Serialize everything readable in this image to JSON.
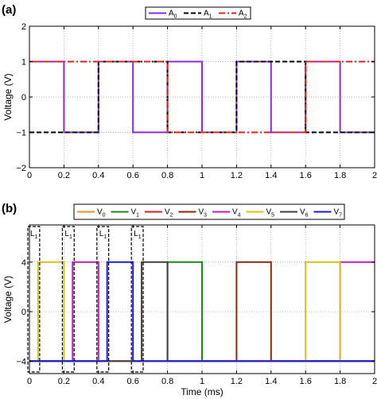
{
  "chart_data": [
    {
      "type": "line",
      "panel_label": "(a)",
      "xlabel": "",
      "ylabel": "Voltage (V)",
      "xlim": [
        0,
        2
      ],
      "ylim": [
        -2,
        2
      ],
      "x_ticks": [
        "0",
        "0.2",
        "0.4",
        "0.6",
        "0.8",
        "1",
        "1.2",
        "1.4",
        "1.6",
        "1.8",
        "2"
      ],
      "y_ticks": [
        "−2",
        "−1",
        "0",
        "1",
        "2"
      ],
      "grid": true,
      "legend_position": "top-center",
      "series": [
        {
          "name": "A",
          "sub": "0",
          "color": "#8a2be2",
          "dash": "solid",
          "points": [
            [
              0,
              1
            ],
            [
              0.2,
              1
            ],
            [
              0.2,
              -1
            ],
            [
              0.4,
              -1
            ],
            [
              0.4,
              1
            ],
            [
              0.6,
              1
            ],
            [
              0.6,
              -1
            ],
            [
              0.8,
              -1
            ],
            [
              0.8,
              1
            ],
            [
              1.0,
              1
            ],
            [
              1.0,
              -1
            ],
            [
              1.2,
              -1
            ],
            [
              1.2,
              1
            ],
            [
              1.4,
              1
            ],
            [
              1.4,
              -1
            ],
            [
              1.6,
              -1
            ],
            [
              1.6,
              1
            ],
            [
              1.8,
              1
            ],
            [
              1.8,
              -1
            ],
            [
              2.0,
              -1
            ]
          ]
        },
        {
          "name": "A",
          "sub": "1",
          "color": "#000000",
          "dash": "dashed",
          "points": [
            [
              0,
              -1
            ],
            [
              0.4,
              -1
            ],
            [
              0.4,
              1
            ],
            [
              0.8,
              1
            ],
            [
              0.8,
              -1
            ],
            [
              1.2,
              -1
            ],
            [
              1.2,
              1
            ],
            [
              1.6,
              1
            ],
            [
              1.6,
              -1
            ],
            [
              2.0,
              -1
            ]
          ]
        },
        {
          "name": "A",
          "sub": "2",
          "color": "#e0201b",
          "dash": "dashdot",
          "points": [
            [
              0,
              1
            ],
            [
              0.8,
              1
            ],
            [
              0.8,
              -1
            ],
            [
              1.6,
              -1
            ],
            [
              1.6,
              1
            ],
            [
              2.0,
              1
            ]
          ]
        }
      ]
    },
    {
      "type": "line",
      "panel_label": "(b)",
      "xlabel": "Time (ms)",
      "ylabel": "Voltage (V)",
      "xlim": [
        0,
        2
      ],
      "ylim": [
        -5,
        7
      ],
      "x_ticks": [
        "0",
        "0.2",
        "0.4",
        "0.6",
        "0.8",
        "1",
        "1.2",
        "1.4",
        "1.6",
        "1.8",
        "2"
      ],
      "y_ticks": [
        "−4",
        "0",
        "4"
      ],
      "grid": true,
      "legend_position": "top",
      "series": [
        {
          "name": "V",
          "sub": "0",
          "color": "#e69422",
          "points": [
            [
              0,
              -4
            ],
            [
              2,
              -4
            ]
          ]
        },
        {
          "name": "V",
          "sub": "1",
          "color": "#1a8a1a",
          "points": [
            [
              0,
              -4
            ],
            [
              0.8,
              -4
            ],
            [
              0.8,
              4
            ],
            [
              1.0,
              4
            ],
            [
              1.0,
              -4
            ],
            [
              2,
              -4
            ]
          ]
        },
        {
          "name": "V",
          "sub": "2",
          "color": "#e01b1b",
          "points": [
            [
              0,
              -4
            ],
            [
              2,
              -4
            ]
          ]
        },
        {
          "name": "V",
          "sub": "3",
          "color": "#8b2a0a",
          "points": [
            [
              0,
              -4
            ],
            [
              1.2,
              -4
            ],
            [
              1.2,
              4
            ],
            [
              1.4,
              4
            ],
            [
              1.4,
              -4
            ],
            [
              2,
              -4
            ]
          ]
        },
        {
          "name": "V",
          "sub": "4",
          "color": "#c21bc2",
          "points": [
            [
              0,
              -4
            ],
            [
              0.25,
              -4
            ],
            [
              0.25,
              4
            ],
            [
              0.4,
              4
            ],
            [
              0.4,
              -4
            ],
            [
              1.8,
              -4
            ],
            [
              1.8,
              4
            ],
            [
              2,
              4
            ]
          ]
        },
        {
          "name": "V",
          "sub": "5",
          "color": "#d4c21b",
          "points": [
            [
              0,
              -4
            ],
            [
              0.05,
              -4
            ],
            [
              0.05,
              4
            ],
            [
              0.2,
              4
            ],
            [
              0.2,
              -4
            ],
            [
              1.6,
              -4
            ],
            [
              1.6,
              4
            ],
            [
              1.8,
              4
            ],
            [
              1.8,
              -4
            ],
            [
              2,
              -4
            ]
          ]
        },
        {
          "name": "V",
          "sub": "6",
          "color": "#404040",
          "points": [
            [
              0,
              -4
            ],
            [
              0.65,
              -4
            ],
            [
              0.65,
              4
            ],
            [
              0.8,
              4
            ],
            [
              0.8,
              -4
            ],
            [
              2,
              -4
            ]
          ]
        },
        {
          "name": "V",
          "sub": "7",
          "color": "#1b1be0",
          "points": [
            [
              0,
              -4
            ],
            [
              0.45,
              -4
            ],
            [
              0.45,
              4
            ],
            [
              0.6,
              4
            ],
            [
              0.6,
              -4
            ],
            [
              2,
              -4
            ]
          ]
        }
      ],
      "annotations": [
        {
          "text": "L",
          "sub": "1",
          "x0": 0.0,
          "x1": 0.05
        },
        {
          "text": "L",
          "sub": "1",
          "x0": 0.2,
          "x1": 0.25
        },
        {
          "text": "L",
          "sub": "1",
          "x0": 0.4,
          "x1": 0.45
        },
        {
          "text": "L",
          "sub": "1",
          "x0": 0.6,
          "x1": 0.65
        }
      ]
    }
  ]
}
